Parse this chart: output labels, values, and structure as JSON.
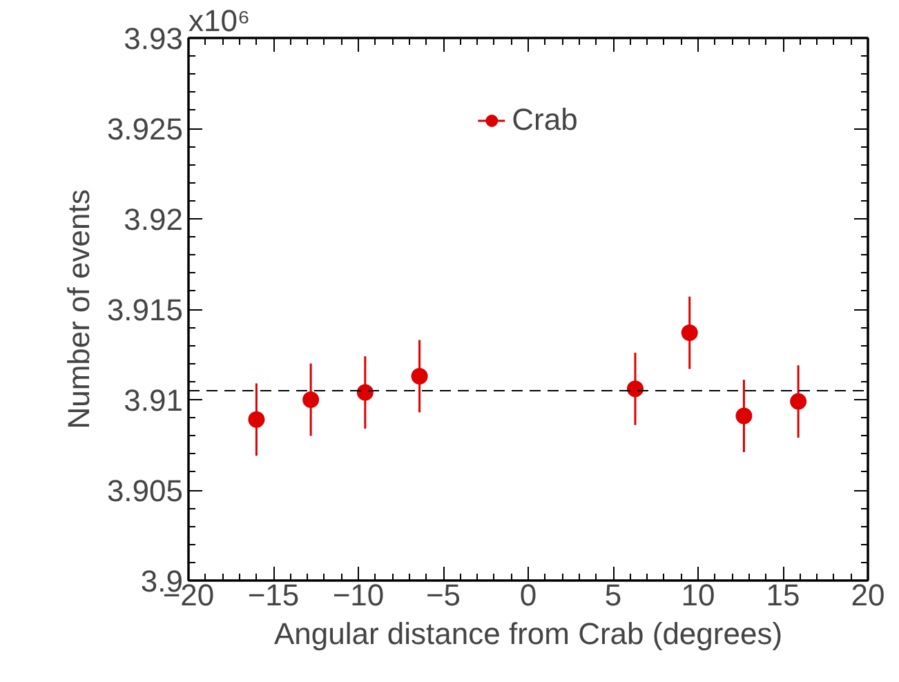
{
  "chart_data": {
    "type": "scatter",
    "xlabel": "Angular distance from Crab (degrees)",
    "ylabel": "Number of events",
    "x": [
      -16.0,
      -12.8,
      -9.6,
      -6.4,
      6.3,
      9.5,
      12.7,
      15.9
    ],
    "series": [
      {
        "name": "Crab",
        "color": "#dd0000",
        "values": [
          3.9089,
          3.91,
          3.9104,
          3.9113,
          3.9106,
          3.9137,
          3.9091,
          3.9099
        ],
        "errors": [
          0.002,
          0.002,
          0.002,
          0.002,
          0.002,
          0.002,
          0.002,
          0.002
        ]
      }
    ],
    "xlim": [
      -20,
      20
    ],
    "xticks": [
      {
        "value": -20,
        "label": "−20"
      },
      {
        "value": -15,
        "label": "−15"
      },
      {
        "value": -10,
        "label": "−10"
      },
      {
        "value": -5,
        "label": "−5"
      },
      0,
      5,
      10,
      15,
      20
    ],
    "ylim": [
      3.9,
      3.93
    ],
    "yticks": [
      3.9,
      3.905,
      3.91,
      3.915,
      3.92,
      3.925,
      3.93
    ],
    "annotations": [
      "x10⁶"
    ],
    "ref_lines": [
      {
        "axis": "y",
        "value": 3.9105,
        "color": "#000000",
        "line_style": "dashed"
      }
    ],
    "marker": "circle",
    "legend": "top",
    "grid": false
  }
}
